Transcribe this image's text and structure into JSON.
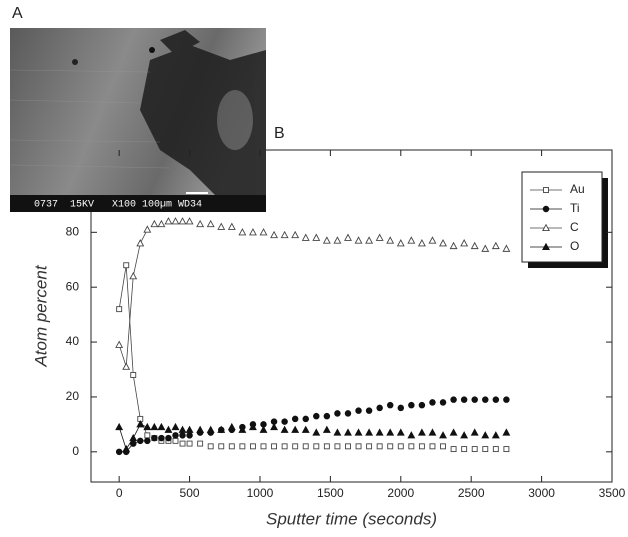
{
  "figure": {
    "panel_a": "A",
    "panel_b": "B",
    "image_caption": "0737  15KV   X100 100µm WD34"
  },
  "chart_data": {
    "type": "scatter",
    "xlabel": "Sputter time (seconds)",
    "ylabel": "Atom percent",
    "xlim": [
      -200,
      3500
    ],
    "ylim": [
      -11,
      110
    ],
    "xticks": [
      0,
      500,
      1000,
      1500,
      2000,
      2500,
      3000,
      3500
    ],
    "yticks": [
      0,
      20,
      40,
      60,
      80
    ],
    "legend": "upper right",
    "x": [
      0,
      50,
      100,
      150,
      200,
      250,
      300,
      350,
      400,
      450,
      500,
      575,
      650,
      725,
      800,
      875,
      950,
      1025,
      1100,
      1175,
      1250,
      1325,
      1400,
      1475,
      1550,
      1625,
      1700,
      1775,
      1850,
      1925,
      2000,
      2075,
      2150,
      2225,
      2300,
      2375,
      2450,
      2525,
      2600,
      2675,
      2750
    ],
    "series": [
      {
        "name": "Au",
        "color": "#444",
        "marker": "square-open",
        "values": [
          52,
          68,
          28,
          12,
          6,
          5,
          4,
          4,
          4,
          3,
          3,
          3,
          2,
          2,
          2,
          2,
          2,
          2,
          2,
          2,
          2,
          2,
          2,
          2,
          2,
          2,
          2,
          2,
          2,
          2,
          2,
          2,
          2,
          2,
          2,
          1,
          1,
          1,
          1,
          1,
          1
        ]
      },
      {
        "name": "Ti",
        "color": "#111",
        "marker": "circle-filled",
        "values": [
          0,
          0,
          3,
          4,
          4,
          5,
          5,
          5,
          6,
          6,
          6,
          7,
          7,
          8,
          8,
          9,
          10,
          10,
          11,
          11,
          12,
          12,
          13,
          13,
          14,
          14,
          15,
          15,
          16,
          17,
          16,
          17,
          17,
          18,
          18,
          19,
          19,
          19,
          19,
          19,
          19
        ]
      },
      {
        "name": "C",
        "color": "#444",
        "marker": "triangle-open",
        "values": [
          39,
          31,
          64,
          76,
          81,
          83,
          83,
          84,
          84,
          84,
          84,
          83,
          83,
          82,
          82,
          80,
          80,
          80,
          79,
          79,
          79,
          78,
          78,
          77,
          77,
          78,
          77,
          77,
          78,
          77,
          76,
          77,
          76,
          77,
          76,
          75,
          76,
          75,
          74,
          75,
          74
        ]
      },
      {
        "name": "O",
        "color": "#111",
        "marker": "triangle-filled",
        "values": [
          9,
          1,
          5,
          10,
          9,
          9,
          9,
          8,
          9,
          8,
          8,
          8,
          8,
          8,
          9,
          8,
          9,
          8,
          9,
          8,
          8,
          8,
          7,
          8,
          7,
          7,
          7,
          7,
          7,
          7,
          7,
          6,
          7,
          7,
          6,
          7,
          6,
          7,
          6,
          6,
          7
        ]
      }
    ]
  }
}
